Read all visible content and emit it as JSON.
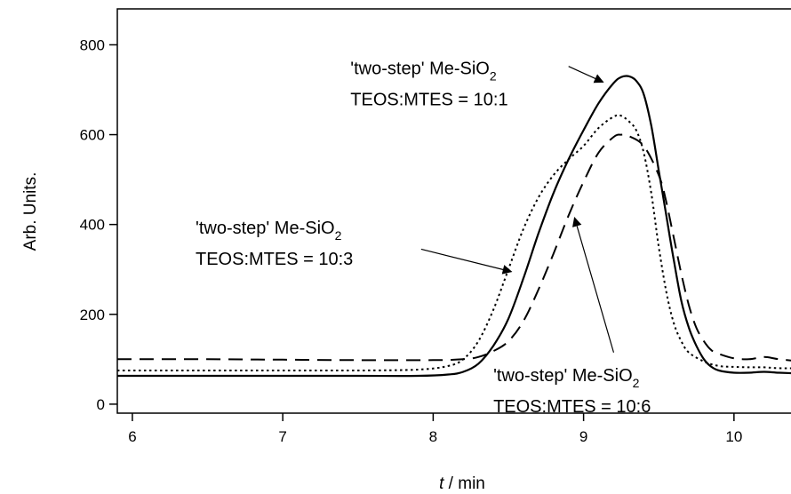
{
  "chart_data": {
    "type": "line",
    "xlabel_italic": "t",
    "xlabel_rest": " / min",
    "ylabel": "Arb. Units.",
    "xlim": [
      5.9,
      10.45
    ],
    "ylim": [
      -20,
      880
    ],
    "xticks": [
      6,
      7,
      8,
      9,
      10
    ],
    "yticks": [
      0,
      200,
      400,
      600,
      800
    ],
    "grid": false,
    "legend": "none",
    "series": [
      {
        "style": "solid",
        "color": "#000000",
        "points": [
          [
            5.9,
            63
          ],
          [
            6.5,
            63
          ],
          [
            7.0,
            63
          ],
          [
            7.5,
            63
          ],
          [
            7.9,
            63
          ],
          [
            8.1,
            66
          ],
          [
            8.2,
            72
          ],
          [
            8.3,
            90
          ],
          [
            8.4,
            130
          ],
          [
            8.5,
            190
          ],
          [
            8.6,
            280
          ],
          [
            8.7,
            380
          ],
          [
            8.8,
            470
          ],
          [
            8.9,
            545
          ],
          [
            9.0,
            610
          ],
          [
            9.1,
            670
          ],
          [
            9.2,
            715
          ],
          [
            9.25,
            728
          ],
          [
            9.3,
            730
          ],
          [
            9.35,
            720
          ],
          [
            9.4,
            690
          ],
          [
            9.45,
            620
          ],
          [
            9.5,
            520
          ],
          [
            9.55,
            420
          ],
          [
            9.6,
            320
          ],
          [
            9.65,
            230
          ],
          [
            9.7,
            170
          ],
          [
            9.75,
            130
          ],
          [
            9.8,
            100
          ],
          [
            9.85,
            83
          ],
          [
            9.9,
            75
          ],
          [
            10.0,
            70
          ],
          [
            10.1,
            70
          ],
          [
            10.2,
            72
          ],
          [
            10.3,
            70
          ],
          [
            10.45,
            68
          ]
        ]
      },
      {
        "style": "dotted",
        "color": "#000000",
        "points": [
          [
            5.9,
            75
          ],
          [
            6.5,
            75
          ],
          [
            7.0,
            75
          ],
          [
            7.5,
            75
          ],
          [
            7.9,
            77
          ],
          [
            8.1,
            85
          ],
          [
            8.2,
            100
          ],
          [
            8.3,
            140
          ],
          [
            8.4,
            210
          ],
          [
            8.5,
            300
          ],
          [
            8.6,
            390
          ],
          [
            8.7,
            460
          ],
          [
            8.8,
            510
          ],
          [
            8.9,
            545
          ],
          [
            9.0,
            575
          ],
          [
            9.1,
            615
          ],
          [
            9.2,
            640
          ],
          [
            9.25,
            642
          ],
          [
            9.3,
            630
          ],
          [
            9.35,
            610
          ],
          [
            9.4,
            560
          ],
          [
            9.45,
            470
          ],
          [
            9.5,
            350
          ],
          [
            9.55,
            250
          ],
          [
            9.6,
            180
          ],
          [
            9.65,
            140
          ],
          [
            9.7,
            115
          ],
          [
            9.8,
            95
          ],
          [
            9.9,
            85
          ],
          [
            10.0,
            83
          ],
          [
            10.1,
            82
          ],
          [
            10.2,
            82
          ],
          [
            10.3,
            80
          ],
          [
            10.45,
            80
          ]
        ]
      },
      {
        "style": "dashed",
        "color": "#000000",
        "points": [
          [
            5.9,
            100
          ],
          [
            6.5,
            100
          ],
          [
            7.0,
            99
          ],
          [
            7.5,
            98
          ],
          [
            8.0,
            98
          ],
          [
            8.2,
            100
          ],
          [
            8.3,
            105
          ],
          [
            8.4,
            118
          ],
          [
            8.5,
            140
          ],
          [
            8.6,
            185
          ],
          [
            8.7,
            255
          ],
          [
            8.8,
            335
          ],
          [
            8.9,
            420
          ],
          [
            9.0,
            495
          ],
          [
            9.1,
            560
          ],
          [
            9.2,
            595
          ],
          [
            9.25,
            600
          ],
          [
            9.3,
            597
          ],
          [
            9.4,
            575
          ],
          [
            9.5,
            510
          ],
          [
            9.55,
            450
          ],
          [
            9.6,
            370
          ],
          [
            9.65,
            290
          ],
          [
            9.7,
            220
          ],
          [
            9.75,
            170
          ],
          [
            9.8,
            140
          ],
          [
            9.85,
            120
          ],
          [
            9.9,
            112
          ],
          [
            10.0,
            102
          ],
          [
            10.1,
            100
          ],
          [
            10.2,
            105
          ],
          [
            10.3,
            100
          ],
          [
            10.45,
            95
          ]
        ]
      }
    ],
    "annotations": [
      {
        "line1": "'two-step' Me-SiO",
        "subscript": "2",
        "line2": "TEOS:MTES = 10:1",
        "anchor": [
          7.45,
          735
        ],
        "arrow_from": [
          8.9,
          752
        ],
        "arrow_to": [
          9.13,
          717
        ]
      },
      {
        "line1": "'two-step' Me-SiO",
        "subscript": "2",
        "line2": "TEOS:MTES = 10:3",
        "anchor": [
          6.42,
          380
        ],
        "arrow_from": [
          7.92,
          345
        ],
        "arrow_to": [
          8.52,
          295
        ]
      },
      {
        "line1": "'two-step' Me-SiO",
        "subscript": "2",
        "line2": "TEOS:MTES = 10:6",
        "anchor": [
          8.4,
          51
        ],
        "arrow_from": [
          9.2,
          115
        ],
        "arrow_to": [
          8.94,
          415
        ]
      }
    ]
  }
}
